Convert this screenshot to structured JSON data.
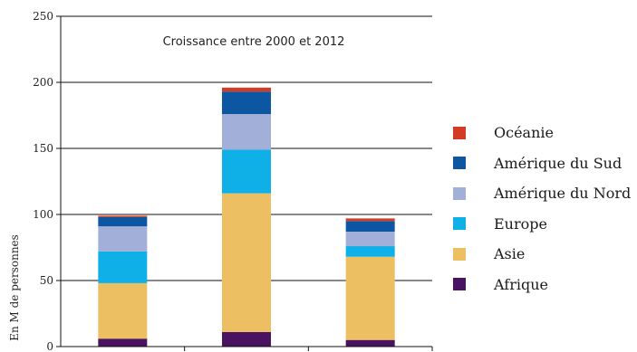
{
  "chart_data": {
    "type": "bar",
    "stacked": true,
    "annotation": "Croissance entre 2000 et 2012",
    "ylabel": "En M de personnes",
    "xlabel": "",
    "ylim": [
      0,
      250
    ],
    "yticks": [
      0,
      50,
      100,
      150,
      200,
      250
    ],
    "grid": true,
    "legend_position": "right",
    "categories": [
      "",
      "",
      ""
    ],
    "series": [
      {
        "name": "Afrique",
        "color": "#4a1362",
        "values": [
          6,
          11,
          5
        ]
      },
      {
        "name": "Asie",
        "color": "#ecbf63",
        "values": [
          42,
          105,
          63
        ]
      },
      {
        "name": "Europe",
        "color": "#0fb0e7",
        "values": [
          24,
          33,
          8
        ]
      },
      {
        "name": "Amérique du Nord",
        "color": "#a2afd9",
        "values": [
          19,
          27,
          11
        ]
      },
      {
        "name": "Amérique du Sud",
        "color": "#0c56a2",
        "values": [
          7,
          17,
          8
        ]
      },
      {
        "name": "Océanie",
        "color": "#d43b25",
        "values": [
          1,
          3,
          2
        ]
      }
    ]
  }
}
